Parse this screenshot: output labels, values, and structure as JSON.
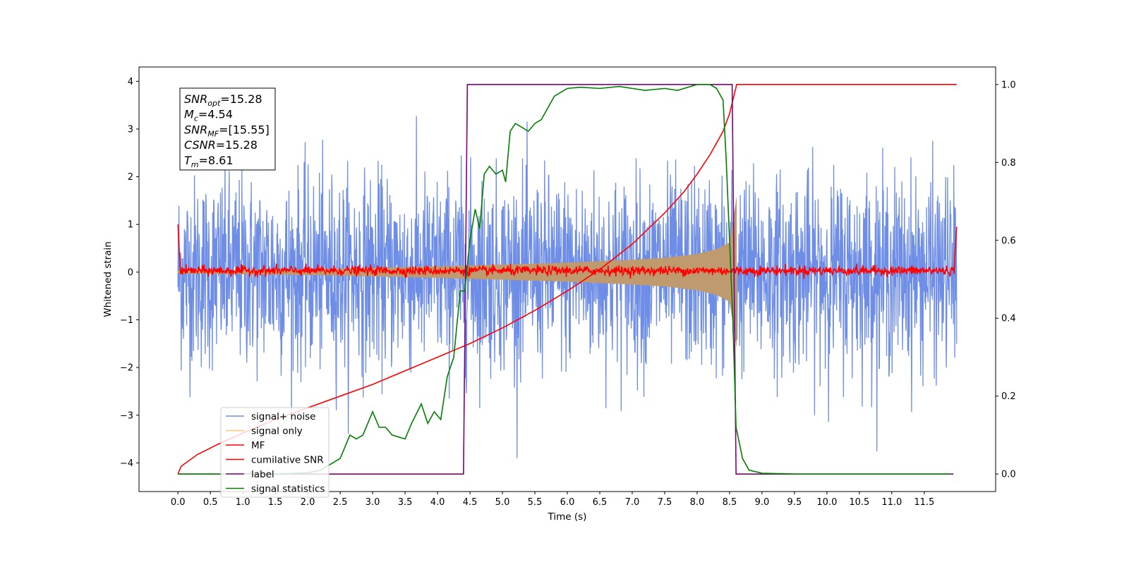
{
  "chart_data": {
    "type": "line",
    "title": "",
    "xlabel": "Time (s)",
    "ylabel": "Whitened strain",
    "xlim": [
      -0.6,
      12.6
    ],
    "ylim": [
      -4.6,
      4.3
    ],
    "y2lim": [
      -0.045,
      1.045
    ],
    "xticks": [
      0.0,
      0.5,
      1.0,
      1.5,
      2.0,
      2.5,
      3.0,
      3.5,
      4.0,
      4.5,
      5.0,
      5.5,
      6.0,
      6.5,
      7.0,
      7.5,
      8.0,
      8.5,
      9.0,
      9.5,
      10.0,
      10.5,
      11.0,
      11.5
    ],
    "xtick_labels": [
      "0.0",
      "0.5",
      "1.0",
      "1.5",
      "2.0",
      "2.5",
      "3.0",
      "3.5",
      "4.0",
      "4.5",
      "5.0",
      "5.5",
      "6.0",
      "6.5",
      "7.0",
      "7.5",
      "8.0",
      "8.5",
      "9.0",
      "9.5",
      "10.0",
      "10.5",
      "11.0",
      "11.5"
    ],
    "yticks": [
      -4,
      -3,
      -2,
      -1,
      0,
      1,
      2,
      3,
      4
    ],
    "ytick_labels": [
      "−4",
      "−3",
      "−2",
      "−1",
      "0",
      "1",
      "2",
      "3",
      "4"
    ],
    "y2ticks": [
      0.0,
      0.2,
      0.4,
      0.6,
      0.8,
      1.0
    ],
    "y2tick_labels": [
      "0.0",
      "0.2",
      "0.4",
      "0.6",
      "0.8",
      "1.0"
    ],
    "grid": false,
    "legend_position": "lower-left",
    "legend": [
      {
        "label": "signal+ noise",
        "color": "#6d8de6"
      },
      {
        "label": "signal only",
        "color": "#ffc77a"
      },
      {
        "label": "MF",
        "color": "#ff0000"
      },
      {
        "label": "cumilative SNR",
        "color": "#ff0000"
      },
      {
        "label": "label",
        "color": "#800080"
      },
      {
        "label": "signal statistics",
        "color": "#008000"
      }
    ],
    "annotation": [
      {
        "sym": "SNR",
        "sub": "opt",
        "val": "=15.28"
      },
      {
        "sym": "M",
        "sub": "c",
        "val": "=4.54"
      },
      {
        "sym": "SNR",
        "sub": "MF",
        "val": "=[15.55]"
      },
      {
        "sym": "CSNR",
        "sub": "",
        "val": "=15.28"
      },
      {
        "sym": "T",
        "sub": "m",
        "val": "=8.61"
      }
    ],
    "series": [
      {
        "name": "signal+ noise",
        "axis": "left",
        "color": "#6d8de6",
        "description": "whitened noise, approx +-2.5 with spikes to +-3.8, t from 0 to 12",
        "t_range": [
          0,
          12
        ],
        "amplitude": 1.0
      },
      {
        "name": "signal only",
        "axis": "left",
        "color": "#ffc77a",
        "description": "chirp envelope",
        "envelope": {
          "t": [
            0,
            2.0,
            4.0,
            5.0,
            6.0,
            7.0,
            7.5,
            8.0,
            8.3,
            8.5,
            8.61
          ],
          "amp": [
            0.03,
            0.06,
            0.12,
            0.16,
            0.2,
            0.26,
            0.3,
            0.38,
            0.48,
            0.62,
            1.6
          ]
        }
      },
      {
        "name": "MF",
        "axis": "left",
        "color": "#ff0000",
        "description": "matched filter output, near 0 with small noise, edges at 1.0",
        "edge_value": 1.0
      },
      {
        "name": "cumilative SNR",
        "axis": "right",
        "color": "#ff0000",
        "t": [
          0.0,
          0.05,
          0.3,
          0.6,
          1.0,
          1.5,
          2.0,
          2.5,
          3.0,
          3.5,
          4.0,
          4.5,
          5.0,
          5.5,
          6.0,
          6.5,
          7.0,
          7.5,
          7.8,
          8.0,
          8.2,
          8.4,
          8.5,
          8.61,
          12.0
        ],
        "y": [
          0.0,
          0.02,
          0.05,
          0.075,
          0.105,
          0.14,
          0.17,
          0.2,
          0.23,
          0.265,
          0.3,
          0.335,
          0.375,
          0.42,
          0.47,
          0.525,
          0.59,
          0.67,
          0.725,
          0.77,
          0.82,
          0.88,
          0.925,
          1.0,
          1.0
        ]
      },
      {
        "name": "label",
        "axis": "right",
        "color": "#800080",
        "t": [
          0.0,
          4.4,
          4.46,
          8.54,
          8.6,
          11.95
        ],
        "y": [
          0.0,
          0.0,
          1.0,
          1.0,
          0.0,
          0.0
        ]
      },
      {
        "name": "signal statistics",
        "axis": "right",
        "color": "#008000",
        "t": [
          0.0,
          1.5,
          2.0,
          2.2,
          2.5,
          2.65,
          2.75,
          2.85,
          3.0,
          3.1,
          3.2,
          3.3,
          3.5,
          3.6,
          3.75,
          3.85,
          3.95,
          4.05,
          4.15,
          4.25,
          4.35,
          4.42,
          4.5,
          4.58,
          4.65,
          4.72,
          4.8,
          4.9,
          5.0,
          5.05,
          5.12,
          5.2,
          5.3,
          5.4,
          5.5,
          5.6,
          5.7,
          5.8,
          6.0,
          6.2,
          6.5,
          6.8,
          7.0,
          7.2,
          7.5,
          7.7,
          8.0,
          8.2,
          8.3,
          8.4,
          8.45,
          8.5,
          8.55,
          8.6,
          8.7,
          8.8,
          9.0,
          9.5,
          11.9
        ],
        "y": [
          0.0,
          0.0,
          0.003,
          0.01,
          0.04,
          0.1,
          0.09,
          0.1,
          0.16,
          0.12,
          0.12,
          0.1,
          0.09,
          0.13,
          0.18,
          0.13,
          0.16,
          0.14,
          0.25,
          0.3,
          0.47,
          0.47,
          0.6,
          0.68,
          0.63,
          0.77,
          0.79,
          0.77,
          0.78,
          0.75,
          0.88,
          0.9,
          0.89,
          0.88,
          0.9,
          0.91,
          0.94,
          0.97,
          0.99,
          0.993,
          0.99,
          0.995,
          0.99,
          0.985,
          0.99,
          0.985,
          1.0,
          1.0,
          0.99,
          0.96,
          0.8,
          0.6,
          0.4,
          0.12,
          0.04,
          0.01,
          0.002,
          0.0,
          0.0
        ]
      }
    ]
  }
}
